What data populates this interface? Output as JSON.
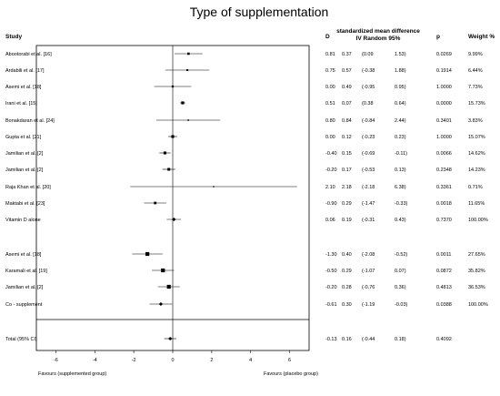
{
  "chart_data": {
    "type": "forest",
    "title": "Type of supplementation",
    "columns": {
      "study": "Study",
      "d": "D",
      "smd_line1": "standardized mean difference",
      "smd_line2": "IV Random 95%",
      "p": "p",
      "weight": "Weight %"
    },
    "xlim": [
      -7,
      7
    ],
    "xticks": [
      -6,
      -4,
      -2,
      0,
      2,
      4,
      6
    ],
    "xlabel_left": "Favours (supplemented group)",
    "xlabel_right": "Favours (placebo group)",
    "rows": [
      {
        "label": "Abootorabi et al. [16]",
        "kind": "study",
        "d": 0.81,
        "se": 0.37,
        "lo": 0.09,
        "hi": 1.53,
        "p": "0.0269",
        "weight": "9.99%",
        "d_text": "0.81",
        "se_text": "0.37",
        "lo_text": "(0.09",
        "hi_text": "1.53)"
      },
      {
        "label": "Ardabili et al. [17]",
        "kind": "study",
        "d": 0.75,
        "se": 0.57,
        "lo": -0.38,
        "hi": 1.88,
        "p": "0.1914",
        "weight": "6.44%",
        "d_text": "0.75",
        "se_text": "0.57",
        "lo_text": "(-0.38",
        "hi_text": "1.88)"
      },
      {
        "label": "Asemi et al. [18]",
        "kind": "study",
        "d": 0.0,
        "se": 0.49,
        "lo": -0.95,
        "hi": 0.95,
        "p": "1.0000",
        "weight": "7.73%",
        "d_text": "0.00",
        "se_text": "0.49",
        "lo_text": "(-0.95",
        "hi_text": "0.95)"
      },
      {
        "label": "Irani et al. [15]",
        "kind": "study",
        "d": 0.51,
        "se": 0.07,
        "lo": 0.38,
        "hi": 0.64,
        "p": "0.0000",
        "weight": "15.73%",
        "d_text": "0.51",
        "se_text": "0.07",
        "lo_text": "(0.38",
        "hi_text": "0.64)"
      },
      {
        "label": "Bonakdaran et al. [24]",
        "kind": "study",
        "d": 0.8,
        "se": 0.84,
        "lo": -0.84,
        "hi": 2.44,
        "p": "0.3401",
        "weight": "3.83%",
        "d_text": "0.80",
        "se_text": "0.84",
        "lo_text": "(-0.84",
        "hi_text": "2.44)"
      },
      {
        "label": "Gupta et al. [21]",
        "kind": "study",
        "d": 0.0,
        "se": 0.12,
        "lo": -0.23,
        "hi": 0.23,
        "p": "1.0000",
        "weight": "15.07%",
        "d_text": "0.00",
        "se_text": "0.12",
        "lo_text": "(-0.23",
        "hi_text": "0.23)"
      },
      {
        "label": "Jamilian et al. [2]",
        "kind": "study",
        "d": -0.4,
        "se": 0.15,
        "lo": -0.69,
        "hi": -0.11,
        "p": "0.0066",
        "weight": "14.62%",
        "d_text": "-0.40",
        "se_text": "0.15",
        "lo_text": "(-0.69",
        "hi_text": "-0.11)"
      },
      {
        "label": "Jamilian et al. [2]",
        "kind": "study",
        "d": -0.2,
        "se": 0.17,
        "lo": -0.53,
        "hi": 0.13,
        "p": "0.2348",
        "weight": "14.23%",
        "d_text": "-0.20",
        "se_text": "0.17",
        "lo_text": "(-0.53",
        "hi_text": "0.13)"
      },
      {
        "label": "Raja Khan et al. [20]",
        "kind": "study",
        "d": 2.1,
        "se": 2.18,
        "lo": -2.18,
        "hi": 6.38,
        "p": "0.3361",
        "weight": "0.71%",
        "d_text": "2.10",
        "se_text": "2.18",
        "lo_text": "(-2.18",
        "hi_text": "6.38)"
      },
      {
        "label": "Maktabi et al. [23]",
        "kind": "study",
        "d": -0.9,
        "se": 0.29,
        "lo": -1.47,
        "hi": -0.33,
        "p": "0.0018",
        "weight": "11.65%",
        "d_text": "-0.90",
        "se_text": "0.29",
        "lo_text": "(-1.47",
        "hi_text": "-0.33)"
      },
      {
        "label": "Vitamin D alone",
        "kind": "subtotal",
        "d": 0.06,
        "se": 0.19,
        "lo": -0.31,
        "hi": 0.43,
        "p": "0.7370",
        "weight": "100.00%",
        "d_text": "0.06",
        "se_text": "0.19",
        "lo_text": "(-0.31",
        "hi_text": "0.43)"
      },
      {
        "label": "Asemi et al. [18]",
        "kind": "study",
        "d": -1.3,
        "se": 0.4,
        "lo": -2.08,
        "hi": -0.52,
        "p": "0.0011",
        "weight": "27.65%",
        "d_text": "-1.30",
        "se_text": "0.40",
        "lo_text": "(-2.08",
        "hi_text": "-0.52)"
      },
      {
        "label": "Karamali et al. [19]",
        "kind": "study",
        "d": -0.5,
        "se": 0.29,
        "lo": -1.07,
        "hi": 0.07,
        "p": "0.0872",
        "weight": "35.82%",
        "d_text": "-0.50",
        "se_text": "0.29",
        "lo_text": "(-1.07",
        "hi_text": "0.07)"
      },
      {
        "label": "Jamilian et al. [2]",
        "kind": "study",
        "d": -0.2,
        "se": 0.28,
        "lo": -0.76,
        "hi": 0.36,
        "p": "0.4813",
        "weight": "36.53%",
        "d_text": "-0.20",
        "se_text": "0.28",
        "lo_text": "(-0.76",
        "hi_text": "0.36)"
      },
      {
        "label": "Co - supplement",
        "kind": "subtotal",
        "d": -0.61,
        "se": 0.3,
        "lo": -1.19,
        "hi": -0.03,
        "p": "0.0388",
        "weight": "100.00%",
        "d_text": "-0.61",
        "se_text": "0.30",
        "lo_text": "(-1.19",
        "hi_text": "-0.03)"
      },
      {
        "label": "Total (95% CI)",
        "kind": "total",
        "d": -0.13,
        "se": 0.16,
        "lo": -0.44,
        "hi": 0.18,
        "p": "0.4092",
        "weight": "",
        "d_text": "-0.13",
        "se_text": "0.16",
        "lo_text": "(-0.44",
        "hi_text": "0.18)"
      }
    ]
  }
}
